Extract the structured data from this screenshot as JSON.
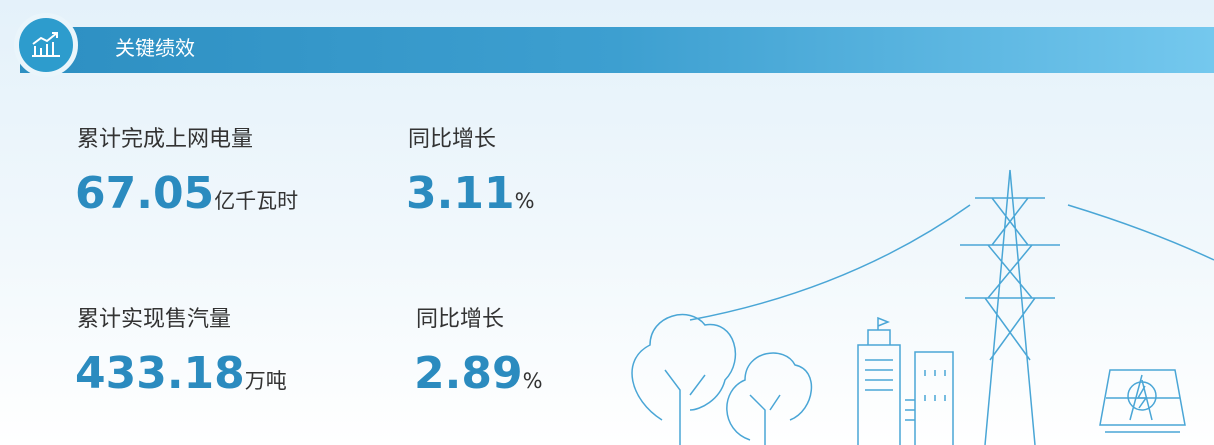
{
  "header": {
    "title": "关键绩效"
  },
  "metrics": [
    {
      "label": "累计完成上网电量",
      "value": 67.05,
      "unit": "亿千瓦时",
      "growth_label": "同比增长",
      "growth": 3.11,
      "growth_unit": "%"
    },
    {
      "label": "累计实现售汽量",
      "value": 433.18,
      "unit": "万吨",
      "growth_label": "同比增长",
      "growth": 2.89,
      "growth_unit": "%"
    }
  ]
}
